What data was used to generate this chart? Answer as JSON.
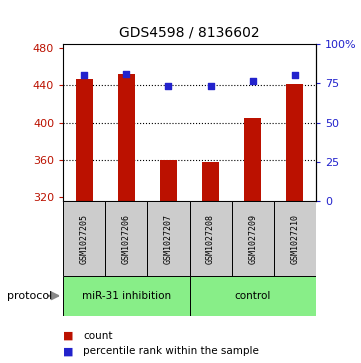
{
  "title": "GDS4598 / 8136602",
  "samples": [
    "GSM1027205",
    "GSM1027206",
    "GSM1027207",
    "GSM1027208",
    "GSM1027209",
    "GSM1027210"
  ],
  "counts": [
    447,
    452,
    360,
    358,
    405,
    441
  ],
  "percentile_ranks": [
    80,
    81,
    73,
    73,
    76,
    80
  ],
  "ylim_left": [
    315,
    485
  ],
  "ylim_right": [
    0,
    100
  ],
  "yticks_left": [
    320,
    360,
    400,
    440,
    480
  ],
  "yticks_right": [
    0,
    25,
    50,
    75,
    100
  ],
  "ytick_labels_right": [
    "0",
    "25",
    "50",
    "75",
    "100%"
  ],
  "bar_color": "#bb1100",
  "dot_color": "#2222cc",
  "bar_bottom": 315,
  "group1_label": "miR-31 inhibition",
  "group2_label": "control",
  "group_color": "#88ee88",
  "protocol_label": "protocol",
  "legend_items": [
    {
      "color": "#bb1100",
      "label": "count"
    },
    {
      "color": "#2222cc",
      "label": "percentile rank within the sample"
    }
  ],
  "sample_box_color": "#cccccc",
  "figsize": [
    3.61,
    3.63
  ],
  "dpi": 100
}
